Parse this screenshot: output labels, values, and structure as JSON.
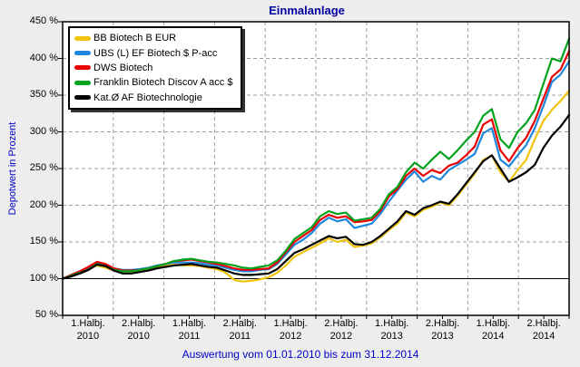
{
  "page": {
    "background": "#EDEDED"
  },
  "chart_data": {
    "type": "line",
    "title": "Einmalanlage",
    "xlabel": "",
    "ylabel": "Depotwert in Prozent",
    "caption": "Auswertung vom 01.01.2010 bis zum 31.12.2014",
    "ylim": [
      50,
      450
    ],
    "y_tick_step": 50,
    "baseline_value": 100,
    "grid": true,
    "grid_color": "#A0A0A0",
    "legend_position": "top-left",
    "title_color": "#0000A0",
    "axis_text_color": "#0000C8",
    "y_tick_labels": [
      "450 %",
      "400 %",
      "350 %",
      "300 %",
      "250 %",
      "200 %",
      "150 %",
      "100 %",
      "50 %"
    ],
    "x_tick_labels": [
      {
        "period": "1.Halbj.",
        "year": "2010"
      },
      {
        "period": "2.Halbj.",
        "year": "2010"
      },
      {
        "period": "1.Halbj.",
        "year": "2011"
      },
      {
        "period": "2.Halbj.",
        "year": "2011"
      },
      {
        "period": "1.Halbj.",
        "year": "2012"
      },
      {
        "period": "2.Halbj.",
        "year": "2012"
      },
      {
        "period": "1.Halbj.",
        "year": "2013"
      },
      {
        "period": "2.Halbj.",
        "year": "2013"
      },
      {
        "period": "1.Halbj.",
        "year": "2014"
      },
      {
        "period": "2.Halbj.",
        "year": "2014"
      }
    ],
    "x_unit": "monthly values from 01.01.2010 to 31.12.2014, in % of initial investment",
    "series": [
      {
        "name": "BB Biotech B EUR",
        "color": "#F2C40F",
        "values": [
          100,
          104,
          108,
          113,
          118,
          115,
          111,
          108,
          109,
          110,
          112,
          115,
          117,
          119,
          118,
          118,
          117,
          115,
          113,
          108,
          98,
          96,
          97,
          99,
          102,
          108,
          118,
          130,
          136,
          142,
          148,
          155,
          150,
          153,
          143,
          145,
          148,
          156,
          166,
          175,
          190,
          185,
          194,
          198,
          204,
          200,
          213,
          228,
          243,
          262,
          268,
          245,
          232,
          248,
          262,
          290,
          315,
          330,
          342,
          356
        ]
      },
      {
        "name": "UBS (L) EF Biotech $ P-acc",
        "color": "#1E87DD",
        "values": [
          100,
          105,
          110,
          115,
          122,
          119,
          114,
          112,
          112,
          113,
          115,
          118,
          120,
          122,
          122,
          122,
          121,
          119,
          118,
          115,
          112,
          110,
          110,
          112,
          113,
          120,
          133,
          146,
          153,
          162,
          175,
          183,
          178,
          181,
          169,
          172,
          175,
          188,
          205,
          220,
          235,
          246,
          232,
          240,
          235,
          248,
          255,
          262,
          270,
          298,
          305,
          262,
          253,
          268,
          282,
          305,
          335,
          368,
          378,
          396
        ]
      },
      {
        "name": "DWS Biotech",
        "color": "#E80000",
        "values": [
          100,
          105,
          110,
          116,
          123,
          120,
          114,
          111,
          111,
          112,
          114,
          117,
          120,
          124,
          125,
          126,
          124,
          122,
          120,
          117,
          114,
          112,
          112,
          113,
          114,
          122,
          136,
          150,
          158,
          166,
          180,
          187,
          183,
          185,
          177,
          178,
          180,
          192,
          212,
          222,
          240,
          250,
          240,
          248,
          244,
          254,
          258,
          268,
          280,
          310,
          317,
          275,
          260,
          278,
          292,
          315,
          345,
          375,
          385,
          410
        ]
      },
      {
        "name": "Franklin Biotech Discov A acc $",
        "color": "#00A21E",
        "values": [
          100,
          104,
          108,
          112,
          120,
          117,
          112,
          110,
          110,
          112,
          114,
          117,
          120,
          124,
          126,
          127,
          125,
          123,
          122,
          120,
          118,
          115,
          114,
          116,
          118,
          125,
          138,
          154,
          162,
          170,
          185,
          192,
          188,
          190,
          179,
          181,
          183,
          195,
          215,
          225,
          245,
          258,
          250,
          262,
          273,
          263,
          275,
          288,
          300,
          322,
          331,
          290,
          278,
          300,
          312,
          330,
          365,
          400,
          396,
          427
        ]
      },
      {
        "name": "Kat.Ø AF Biotechnologie",
        "color": "#000000",
        "values": [
          100,
          103,
          107,
          112,
          119,
          117,
          111,
          107,
          107,
          109,
          111,
          114,
          116,
          118,
          119,
          120,
          118,
          116,
          115,
          111,
          107,
          105,
          105,
          106,
          107,
          113,
          124,
          135,
          140,
          146,
          152,
          158,
          155,
          157,
          147,
          146,
          150,
          158,
          168,
          178,
          192,
          187,
          196,
          200,
          205,
          202,
          215,
          230,
          245,
          260,
          268,
          250,
          232,
          238,
          245,
          255,
          278,
          295,
          307,
          323
        ]
      }
    ]
  }
}
